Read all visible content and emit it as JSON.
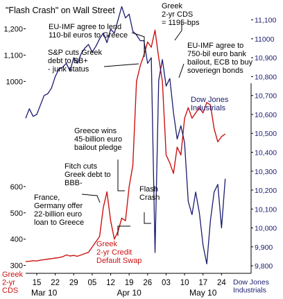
{
  "chart_data": {
    "type": "line",
    "title": "\"Flash Crash\" on Wall Street",
    "colors": {
      "greek_cds": "#cc1111",
      "dow": "#1a1a6e",
      "text_dark": "#000000",
      "text_navy": "#1a1a6e"
    },
    "left_axis": {
      "label": [
        "Greek",
        "2-yr",
        "CDS"
      ],
      "ticks": [
        {
          "value": 300,
          "label": "300"
        },
        {
          "value": 400,
          "label": "400"
        },
        {
          "value": 500,
          "label": "500"
        },
        {
          "value": 600,
          "label": "600"
        },
        {
          "value": 1000,
          "label": "1000"
        },
        {
          "value": 1100,
          "label": "1,100"
        },
        {
          "value": 1200,
          "label": "1,200"
        }
      ],
      "range": [
        270,
        1270
      ]
    },
    "right_axis": {
      "label": [
        "Dow Jones",
        "Industrials"
      ],
      "ticks": [
        {
          "value": 9800,
          "label": "9,800"
        },
        {
          "value": 9900,
          "label": "9,900"
        },
        {
          "value": 10000,
          "label": "10,000"
        },
        {
          "value": 10100,
          "label": "10,100"
        },
        {
          "value": 10200,
          "label": "10,200"
        },
        {
          "value": 10300,
          "label": "10,300"
        },
        {
          "value": 10400,
          "label": "10,400"
        },
        {
          "value": 10500,
          "label": "10,500"
        },
        {
          "value": 10600,
          "label": "10,600"
        },
        {
          "value": 10700,
          "label": "10,700"
        },
        {
          "value": 10800,
          "label": "10,800"
        },
        {
          "value": 10900,
          "label": "10,900"
        },
        {
          "value": 11000,
          "label": "11000"
        },
        {
          "value": 11100,
          "label": "11,100"
        }
      ],
      "range": [
        9760,
        11150
      ]
    },
    "x_axis": {
      "days": [
        "15",
        "22",
        "29",
        "05",
        "12",
        "19",
        "26",
        "03",
        "10",
        "17",
        "24"
      ],
      "day_index": [
        3,
        8,
        13,
        18,
        23,
        28,
        33,
        38,
        43,
        48,
        53
      ],
      "months": [
        {
          "label": "Mar 10",
          "index": 5
        },
        {
          "label": "Apr 10",
          "index": 28
        },
        {
          "label": "May 10",
          "index": 48
        }
      ],
      "range": [
        0,
        61
      ]
    },
    "series": [
      {
        "key": "greek_cds",
        "axis": "left",
        "points": [
          [
            0,
            315
          ],
          [
            1,
            316
          ],
          [
            2,
            318
          ],
          [
            3,
            317
          ],
          [
            4,
            320
          ],
          [
            5,
            322
          ],
          [
            6,
            324
          ],
          [
            7,
            326
          ],
          [
            8,
            328
          ],
          [
            9,
            330
          ],
          [
            10,
            333
          ],
          [
            11,
            340
          ],
          [
            12,
            336
          ],
          [
            13,
            338
          ],
          [
            14,
            335
          ],
          [
            15,
            340
          ],
          [
            16,
            345
          ],
          [
            17,
            350
          ],
          [
            18,
            370
          ],
          [
            19,
            390
          ],
          [
            20,
            410
          ],
          [
            21,
            520
          ],
          [
            22,
            580
          ],
          [
            23,
            470
          ],
          [
            24,
            400
          ],
          [
            25,
            430
          ],
          [
            26,
            480
          ],
          [
            27,
            470
          ],
          [
            28,
            600
          ],
          [
            29,
            680
          ],
          [
            30,
            1000
          ],
          [
            31,
            1060
          ],
          [
            32,
            1100
          ],
          [
            33,
            1150
          ],
          [
            34,
            1130
          ],
          [
            35,
            1195
          ],
          [
            36,
            1090
          ],
          [
            37,
            1000
          ],
          [
            38,
            720
          ],
          [
            39,
            690
          ],
          [
            40,
            650
          ],
          [
            41,
            750
          ],
          [
            42,
            720
          ],
          [
            43,
            860
          ],
          [
            44,
            900
          ],
          [
            45,
            860
          ],
          [
            46,
            880
          ],
          [
            47,
            900
          ],
          [
            48,
            880
          ],
          [
            49,
            920
          ],
          [
            50,
            910
          ],
          [
            51,
            820
          ],
          [
            52,
            770
          ],
          [
            53,
            790
          ],
          [
            54,
            800
          ]
        ]
      },
      {
        "key": "dow",
        "axis": "right",
        "points": [
          [
            0,
            10580
          ],
          [
            1,
            10630
          ],
          [
            2,
            10590
          ],
          [
            3,
            10600
          ],
          [
            4,
            10650
          ],
          [
            5,
            10700
          ],
          [
            6,
            10710
          ],
          [
            7,
            10740
          ],
          [
            8,
            10800
          ],
          [
            9,
            10840
          ],
          [
            10,
            10850
          ],
          [
            11,
            10870
          ],
          [
            12,
            10830
          ],
          [
            13,
            10900
          ],
          [
            14,
            10870
          ],
          [
            15,
            10920
          ],
          [
            16,
            10950
          ],
          [
            17,
            10970
          ],
          [
            18,
            10930
          ],
          [
            19,
            10960
          ],
          [
            20,
            11000
          ],
          [
            21,
            11030
          ],
          [
            22,
            10980
          ],
          [
            23,
            11050
          ],
          [
            24,
            11030
          ],
          [
            25,
            11100
          ],
          [
            26,
            11170
          ],
          [
            27,
            11110
          ],
          [
            28,
            11130
          ],
          [
            29,
            11040
          ],
          [
            30,
            11020
          ],
          [
            31,
            10990
          ],
          [
            32,
            10990
          ],
          [
            33,
            10870
          ],
          [
            34,
            10900
          ],
          [
            35,
            9870
          ],
          [
            36,
            10780
          ],
          [
            37,
            10890
          ],
          [
            38,
            10750
          ],
          [
            39,
            10790
          ],
          [
            40,
            10610
          ],
          [
            41,
            10470
          ],
          [
            42,
            10540
          ],
          [
            43,
            10450
          ],
          [
            44,
            10140
          ],
          [
            45,
            10070
          ],
          [
            46,
            10190
          ],
          [
            47,
            10080
          ],
          [
            48,
            9910
          ],
          [
            49,
            9810
          ],
          [
            50,
            10040
          ],
          [
            51,
            10190
          ],
          [
            52,
            10230
          ],
          [
            53,
            10000
          ],
          [
            54,
            10260
          ]
        ]
      }
    ],
    "annotations": [
      {
        "key": "greek_cds_5y",
        "color": "dark",
        "lines": [
          "Greek",
          "2-yr CDS",
          "= 1195-bps"
        ]
      },
      {
        "key": "eu_imf_lend",
        "color": "dark",
        "lines": [
          "EU-IMF agree to lend",
          "110-bil euros to Greece"
        ]
      },
      {
        "key": "sp_cuts",
        "color": "dark",
        "lines": [
          "S&P cuts Greek",
          "debt to BB+",
          "- junk status"
        ]
      },
      {
        "key": "eu_imf_750",
        "color": "dark",
        "lines": [
          "EU-IMF agree to",
          "750-bil euro bank",
          "bailout, ECB to buy",
          "soveriegn bonds"
        ]
      },
      {
        "key": "dow_label",
        "color": "navy",
        "lines": [
          "Dow Jones",
          "Industrials"
        ]
      },
      {
        "key": "greece_wins",
        "color": "dark",
        "lines": [
          "Greece wins",
          "45-billion euro",
          "bailout pledge"
        ]
      },
      {
        "key": "fitch_cuts",
        "color": "dark",
        "lines": [
          "Fitch cuts",
          "Greek debt to",
          "BBB-"
        ]
      },
      {
        "key": "flash_crash",
        "color": "dark",
        "lines": [
          "Flash",
          "Crash"
        ]
      },
      {
        "key": "france_germany",
        "color": "dark",
        "lines": [
          "France,",
          "Germany offer",
          "22-billion euro",
          "loan to Greece"
        ]
      },
      {
        "key": "greek_cds_label",
        "color": "red",
        "lines": [
          "Greek",
          "2-yr Credit",
          "Default Swap"
        ]
      }
    ]
  }
}
